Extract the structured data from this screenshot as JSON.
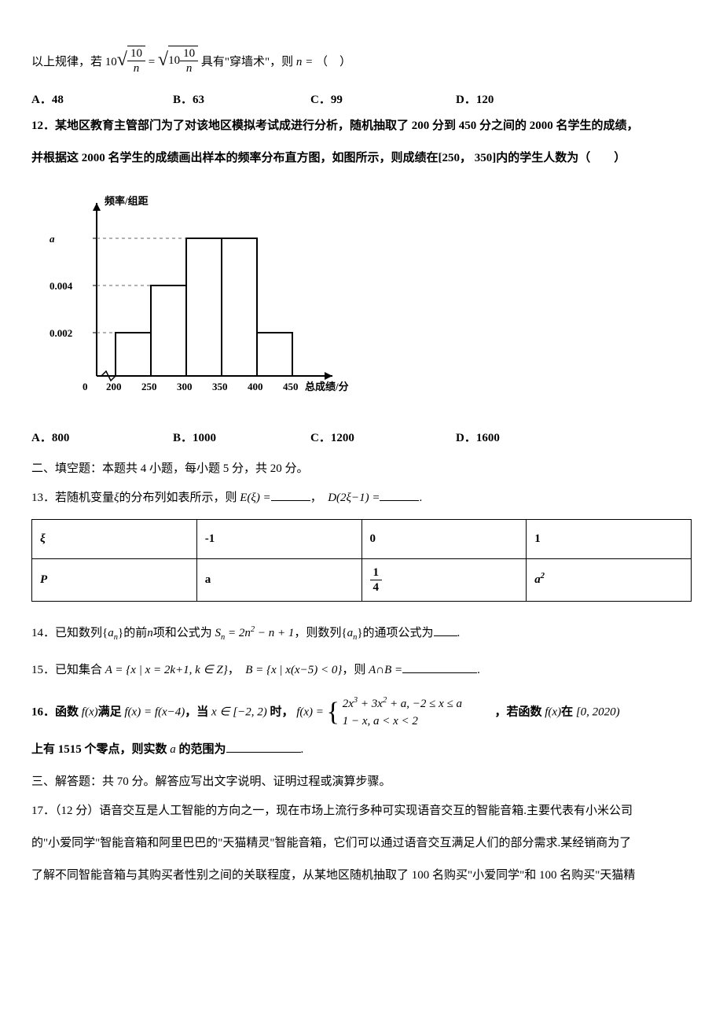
{
  "q_intro": {
    "prefix": "以上规律，若",
    "formula_text": "10√(10/n) = √(10·10/n)",
    "mid": " 具有\"穿墙术\"，则",
    "var": "n = ",
    "suffix": "（　）"
  },
  "q11_options": {
    "a": "A．48",
    "b": "B．63",
    "c": "C．99",
    "d": "D．120"
  },
  "q12": {
    "num": "12．",
    "text1": "某地区教育主管部门为了对该地区模拟考试成进行分析，随机抽取了 200 分到 450 分之间的 2000 名学生的成绩，",
    "text2": "并根据这 2000 名学生的成绩画出样本的频率分布直方图，如图所示，则成绩在[250， 350]内的学生人数为（　　）"
  },
  "histogram": {
    "ylabel": "频率/组距",
    "xlabel": "总成绩/分",
    "y_ticks": [
      "a",
      "0.004",
      "0.002"
    ],
    "x_origin": "0",
    "x_ticks": [
      "200",
      "250",
      "300",
      "350",
      "400",
      "450"
    ],
    "x_positions": [
      0,
      1,
      2,
      3,
      4,
      5
    ],
    "bars": [
      {
        "x": 0,
        "level": 1
      },
      {
        "x": 1,
        "level": 2
      },
      {
        "x": 2,
        "level": 3
      },
      {
        "x": 3,
        "level": 3
      },
      {
        "x": 4,
        "level": 1
      }
    ],
    "level_heights": {
      "1": 55,
      "2": 115,
      "3": 175
    },
    "axis_color": "#000000",
    "grid_color": "#666666",
    "background": "#ffffff",
    "fontsize": 13
  },
  "q12_options": {
    "a": "A．800",
    "b": "B．1000",
    "c": "C．1200",
    "d": "D．1600"
  },
  "section2": "二、填空题：本题共 4 小题，每小题 5 分，共 20 分。",
  "q13": {
    "num": "13．",
    "text_pre": "若随机变量",
    "xi": "ξ",
    "text_mid1": "的分布列如表所示，则",
    "e_xi": "E(ξ) =",
    "comma": "，",
    "d_expr": "D(2ξ−1) =",
    "suffix": "."
  },
  "dist_table": {
    "r1": [
      "ξ",
      "-1",
      "0",
      "1"
    ],
    "r2_c0": "P",
    "r2_c1": "a",
    "r2_c2_num": "1",
    "r2_c2_den": "4",
    "r2_c3": "a"
  },
  "q14": {
    "num": "14．",
    "t1": "已知数列",
    "seq": "{aₙ}",
    "t2": "的前",
    "nvar": "n",
    "t3": "项和公式为",
    "formula": "Sₙ = 2n² − n + 1",
    "t4": "，则数列",
    "t5": "的通项公式为",
    "suffix": "."
  },
  "q15": {
    "num": "15．",
    "t1": "已知集合",
    "A_def": "A = {x | x = 2k+1, k ∈ Z}",
    "comma": "，",
    "B_def": "B = {x | x(x−5) < 0}",
    "t2": "，则",
    "AB": "A∩B =",
    "suffix": "."
  },
  "q16": {
    "num": "16．",
    "t1": "函数",
    "fx": "f(x)",
    "t2": "满足",
    "eq1": "f(x) = f(x−4)",
    "t3": "，当",
    "dom": "x ∈ [−2, 2)",
    "t4": " 时，",
    "piece_label": "f(x) =",
    "piece_line1": "2x³ + 3x² + a, −2 ≤ x ≤ a",
    "piece_line2": "1 − x, a < x < 2",
    "t5": "，若函数",
    "t6": "在",
    "range": "[0, 2020)",
    "t7": "上有",
    "zeros": "1515",
    "t8": "个零点，则实数",
    "avar": "a",
    "t9": "的范围为",
    "suffix": "."
  },
  "section3": "三、解答题：共 70 分。解答应写出文字说明、证明过程或演算步骤。",
  "q17": {
    "num": "17．（12 分）",
    "l1": "语音交互是人工智能的方向之一，现在市场上流行多种可实现语音交互的智能音箱.主要代表有小米公司",
    "l2": "的\"小爱同学\"智能音箱和阿里巴巴的\"天猫精灵\"智能音箱，它们可以通过语音交互满足人们的部分需求.某经销商为了",
    "l3": "了解不同智能音箱与其购买者性别之间的关联程度，从某地区随机抽取了 100 名购买\"小爱同学\"和 100 名购买\"天猫精"
  }
}
